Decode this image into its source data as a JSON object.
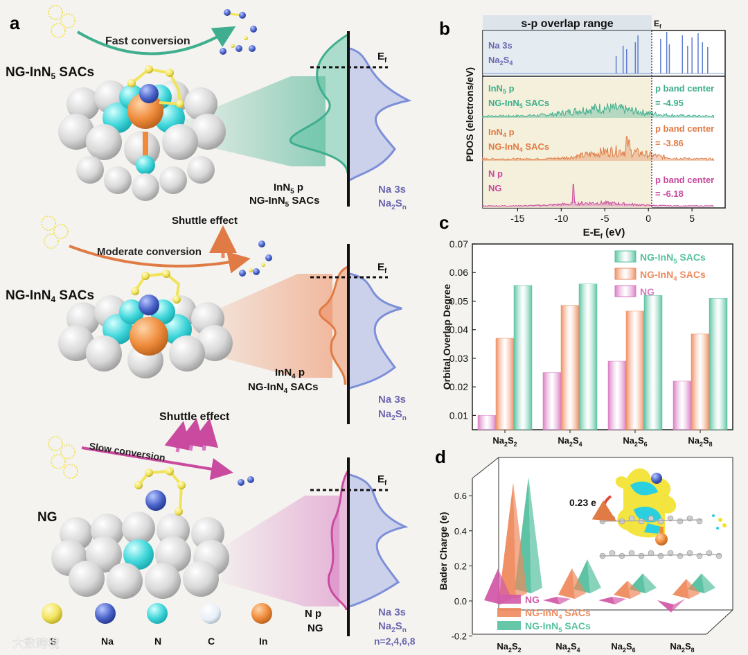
{
  "panel_labels": {
    "a": "a",
    "b": "b",
    "c": "c",
    "d": "d"
  },
  "panel_a": {
    "rows": [
      {
        "catalyst": "NG-InN",
        "sub": "5",
        "tail": " SACs",
        "conversion": "Fast conversion",
        "shuttle": "",
        "p_label": "InN",
        "p_sub": "5",
        "p_tail": " p",
        "cat_label": "NG-InN",
        "cat_sub": "5",
        "cat_tail": " SACs"
      },
      {
        "catalyst": "NG-InN",
        "sub": "4",
        "tail": " SACs",
        "conversion": "Moderate conversion",
        "shuttle": "Shuttle effect",
        "p_label": "InN",
        "p_sub": "4",
        "p_tail": " p",
        "cat_label": "NG-InN",
        "cat_sub": "4",
        "cat_tail": " SACs"
      },
      {
        "catalyst": "NG",
        "sub": "",
        "tail": "",
        "conversion": "Slow conversion",
        "shuttle": "Shuttle effect",
        "p_label": "N p",
        "p_sub": "",
        "p_tail": "",
        "cat_label": "NG",
        "cat_sub": "",
        "cat_tail": ""
      }
    ],
    "ef_label": "E",
    "ef_sub": "f",
    "na3s": "Na 3s",
    "na2sn": "Na",
    "na2sn_sub1": "2",
    "na2sn_mid": "S",
    "na2sn_sub2": "n",
    "n_values": "n=2,4,6,8",
    "legend": [
      "S",
      "Na",
      "N",
      "C",
      "In"
    ],
    "legend_colors": [
      "#f3e65a",
      "#4a63c9",
      "#38d4d8",
      "#e6eef6",
      "#f08a3c"
    ]
  },
  "panel_b": {
    "header": "s-p overlap range",
    "ef": "E",
    "ef_sub": "f",
    "ylabel": "PDOS (electrons/eV)",
    "xlabel": "E-E",
    "xlabel_sub": "f",
    "xlabel_tail": " (eV)",
    "xticks": [
      "-15",
      "-10",
      "-5",
      "0",
      "5"
    ],
    "tracks": [
      {
        "l1": "Na 3s",
        "l2a": "Na",
        "l2s1": "2",
        "l2b": "S",
        "l2s2": "4",
        "center_l1": "",
        "center_l2": ""
      },
      {
        "l1a": "InN",
        "l1s": "5",
        "l1b": " p",
        "l2a": "NG-InN",
        "l2s": "5",
        "l2b": " SACs",
        "center_l1": "p band center",
        "center_l2": "= -4.95"
      },
      {
        "l1a": "InN",
        "l1s": "4",
        "l1b": " p",
        "l2a": "NG-InN",
        "l2s": "4",
        "l2b": " SACs",
        "center_l1": "p band center",
        "center_l2": "= -3.86"
      },
      {
        "l1a": "N p",
        "l1s": "",
        "l1b": "",
        "l2a": "NG",
        "l2s": "",
        "l2b": "",
        "center_l1": "p band center",
        "center_l2": "= -6.18"
      }
    ]
  },
  "panel_d": {
    "ylabel": "Bader Charge (e)",
    "yticks": [
      "0.6",
      "0.4",
      "0.2",
      "0.0",
      "-0.2"
    ],
    "transfer": "0.23 e"
  },
  "chart_data": [
    {
      "type": "bar",
      "panel": "c",
      "title": "",
      "xlabel": "",
      "ylabel": "Orbital Overlap Degree",
      "categories": [
        "Na2S2",
        "Na2S4",
        "Na2S6",
        "Na2S8"
      ],
      "category_labels": [
        {
          "a": "Na",
          "s1": "2",
          "b": "S",
          "s2": "2"
        },
        {
          "a": "Na",
          "s1": "2",
          "b": "S",
          "s2": "4"
        },
        {
          "a": "Na",
          "s1": "2",
          "b": "S",
          "s2": "6"
        },
        {
          "a": "Na",
          "s1": "2",
          "b": "S",
          "s2": "8"
        }
      ],
      "series": [
        {
          "name": "NG",
          "color": "#d878c2",
          "values": [
            0.01,
            0.025,
            0.029,
            0.022
          ]
        },
        {
          "name": "NG-InN4 SACs",
          "color": "#ee8a5e",
          "values": [
            0.037,
            0.0485,
            0.0465,
            0.0385
          ]
        },
        {
          "name": "NG-InN5 SACs",
          "color": "#55c09f",
          "values": [
            0.0555,
            0.056,
            0.052,
            0.051
          ]
        }
      ],
      "legend": [
        {
          "a": "NG-InN",
          "s": "5",
          "b": " SACs"
        },
        {
          "a": "NG-InN",
          "s": "4",
          "b": " SACs"
        },
        {
          "a": "NG",
          "s": "",
          "b": ""
        }
      ],
      "ylim": [
        0.005,
        0.07
      ],
      "yticks": [
        "0.01",
        "0.02",
        "0.03",
        "0.04",
        "0.05",
        "0.06",
        "0.07"
      ],
      "legend_position": "top-right"
    },
    {
      "type": "bar",
      "panel": "d",
      "style": "3d-pyramid",
      "ylabel": "Bader Charge (e)",
      "categories": [
        "Na2S2",
        "Na2S4",
        "Na2S6",
        "Na2S8"
      ],
      "category_labels": [
        {
          "a": "Na",
          "s1": "2",
          "b": "S",
          "s2": "2"
        },
        {
          "a": "Na",
          "s1": "2",
          "b": "S",
          "s2": "4"
        },
        {
          "a": "Na",
          "s1": "2",
          "b": "S",
          "s2": "6"
        },
        {
          "a": "Na",
          "s1": "2",
          "b": "S",
          "s2": "8"
        }
      ],
      "series": [
        {
          "name": "NG",
          "color": "#d35aa8",
          "values": [
            0.18,
            0.02,
            0.02,
            -0.07
          ]
        },
        {
          "name": "NG-InN4 SACs",
          "color": "#ee8a5e",
          "values": [
            0.64,
            0.15,
            0.08,
            0.09
          ]
        },
        {
          "name": "NG-InN5 SACs",
          "color": "#55c09f",
          "values": [
            0.64,
            0.17,
            0.09,
            0.09
          ]
        }
      ],
      "legend": [
        {
          "a": "NG",
          "s": "",
          "b": ""
        },
        {
          "a": "NG-InN",
          "s": "4",
          "b": " SACs"
        },
        {
          "a": "NG-InN",
          "s": "5",
          "b": " SACs"
        }
      ],
      "ylim": [
        -0.2,
        0.7
      ]
    }
  ],
  "watermark": "大数跨境"
}
